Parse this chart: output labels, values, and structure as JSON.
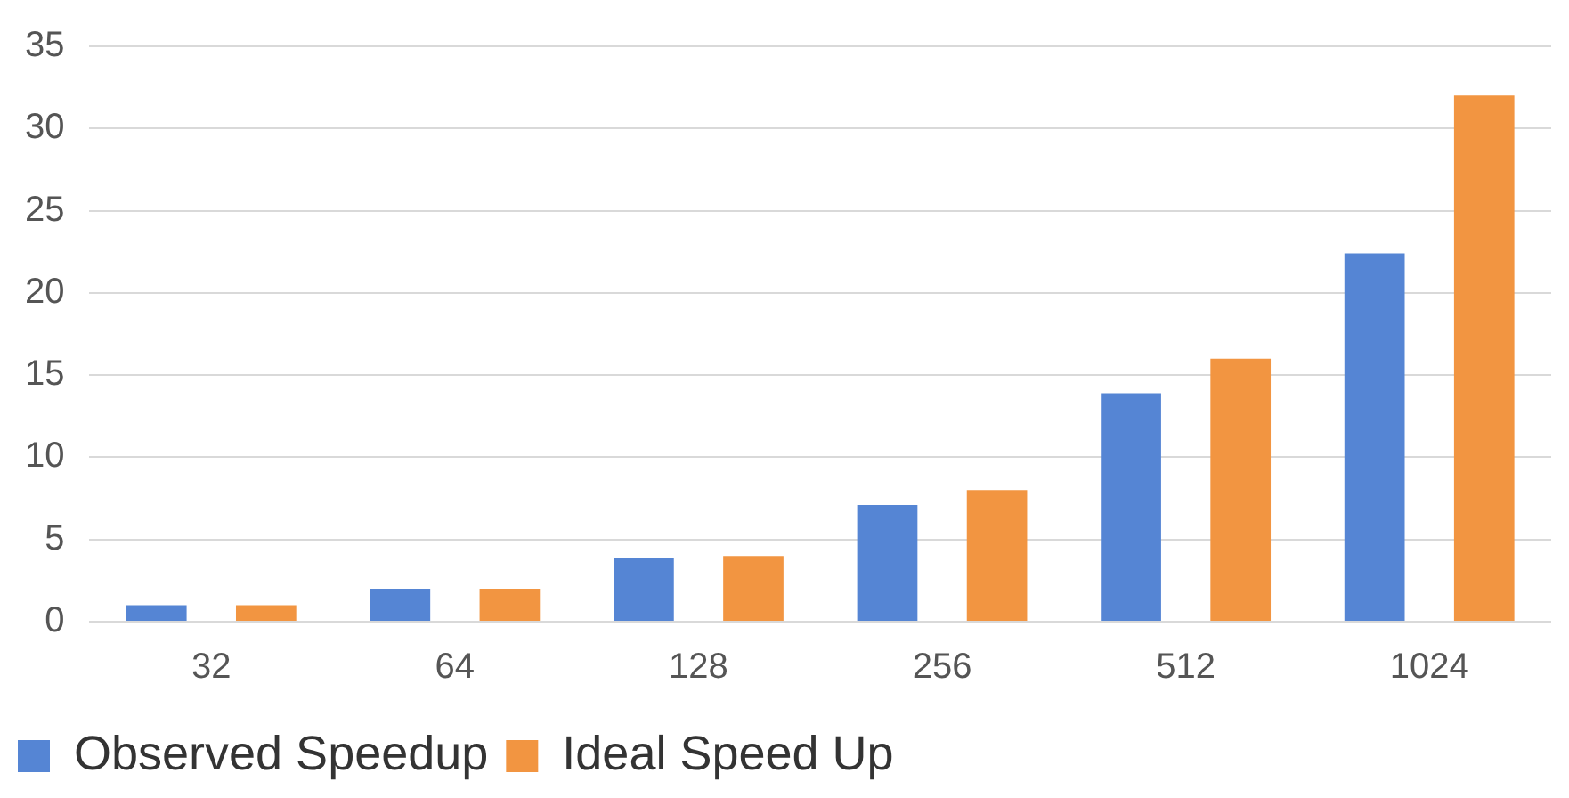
{
  "chart_data": {
    "type": "bar",
    "categories": [
      "32",
      "64",
      "128",
      "256",
      "512",
      "1024"
    ],
    "series": [
      {
        "name": "Observed Speedup",
        "color": "#5585d4",
        "values": [
          1,
          2,
          3.9,
          7.1,
          13.9,
          22.4
        ]
      },
      {
        "name": "Ideal Speed Up",
        "color": "#f29541",
        "values": [
          1,
          2,
          4,
          8,
          16,
          32
        ]
      }
    ],
    "ylim": [
      0,
      35
    ],
    "yticks": [
      0,
      5,
      10,
      15,
      20,
      25,
      30,
      35
    ],
    "grid": "y",
    "legend": "bottom left"
  }
}
